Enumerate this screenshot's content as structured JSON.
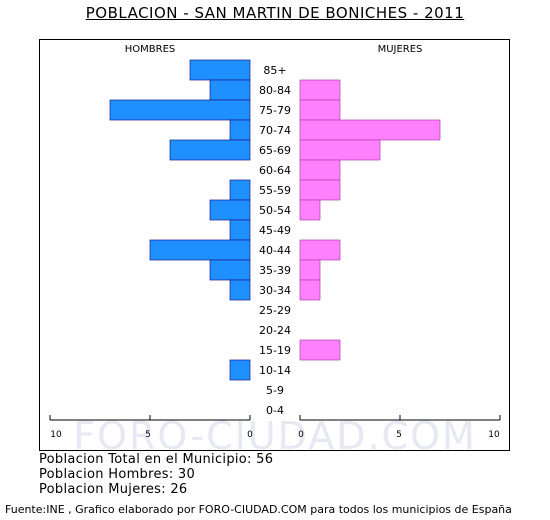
{
  "title": "POBLACION - SAN MARTIN DE BONICHES - 2011",
  "watermark": "FORO-CIUDAD.COM",
  "stats": {
    "total": "Poblacion Total en el Municipio: 56",
    "hombres": "Poblacion Hombres: 30",
    "mujeres": "Poblacion Mujeres: 26"
  },
  "footer": "Fuente:INE , Grafico elaborado por FORO-CIUDAD.COM para todos los municipios de España",
  "colors": {
    "male": "#1e90ff",
    "female": "#ff80ff",
    "border": "#000000"
  },
  "chart_data": {
    "type": "bar",
    "orientation": "horizontal-pyramid",
    "categories": [
      "85+",
      "80-84",
      "75-79",
      "70-74",
      "65-69",
      "60-64",
      "55-59",
      "50-54",
      "45-49",
      "40-44",
      "35-39",
      "30-34",
      "25-29",
      "20-24",
      "15-19",
      "10-14",
      "5-9",
      "0-4"
    ],
    "series": [
      {
        "name": "HOMBRES",
        "values": [
          3,
          2,
          7,
          1,
          4,
          0,
          1,
          2,
          1,
          5,
          2,
          1,
          0,
          0,
          0,
          1,
          0,
          0
        ]
      },
      {
        "name": "MUJERES",
        "values": [
          0,
          2,
          2,
          7,
          4,
          2,
          2,
          1,
          0,
          2,
          1,
          1,
          0,
          0,
          2,
          0,
          0,
          0
        ]
      }
    ],
    "xlim": [
      0,
      10
    ],
    "ticks": [
      "10",
      "5",
      "0",
      "0",
      "5",
      "10"
    ],
    "grid": false,
    "legend": "top"
  }
}
